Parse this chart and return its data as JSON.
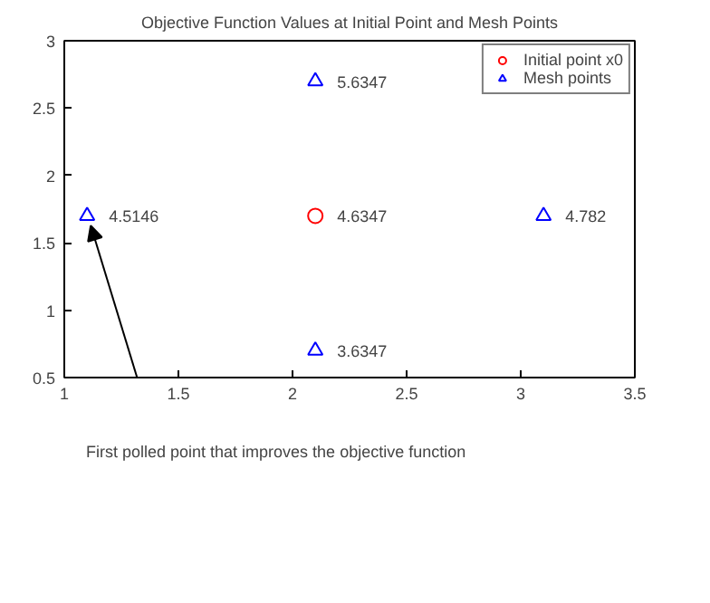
{
  "chart_data": {
    "type": "scatter",
    "title": "Objective Function Values at Initial Point and Mesh Points",
    "series": [
      {
        "name": "Initial point x0",
        "color": "#ff0000",
        "marker": "circle",
        "x": [
          2.1
        ],
        "values": [
          1.7
        ]
      },
      {
        "name": "Mesh points",
        "color": "#0000ff",
        "marker": "triangle",
        "x": [
          2.1,
          1.1,
          2.1,
          3.1
        ],
        "values": [
          2.7,
          1.7,
          0.7,
          1.7
        ]
      }
    ],
    "xlim": [
      1,
      3.5
    ],
    "xticks": [
      1,
      1.5,
      2,
      2.5,
      3,
      3.5
    ],
    "ylim": [
      0.5,
      3
    ],
    "yticks": [
      0.5,
      1,
      1.5,
      2,
      2.5,
      3
    ],
    "legend": "top right",
    "grid": false,
    "annotations": [
      {
        "text": "First polled point that improves the objective function",
        "x": 1.1,
        "y": 1.7
      },
      {
        "text": "4.6347",
        "x": 2.1,
        "y": 1.7
      },
      {
        "text": "5.6347",
        "x": 2.1,
        "y": 2.7
      },
      {
        "text": "4.5146",
        "x": 1.1,
        "y": 1.7
      },
      {
        "text": "3.6347",
        "x": 2.1,
        "y": 0.7
      },
      {
        "text": "4.782",
        "x": 3.1,
        "y": 1.7
      }
    ]
  }
}
